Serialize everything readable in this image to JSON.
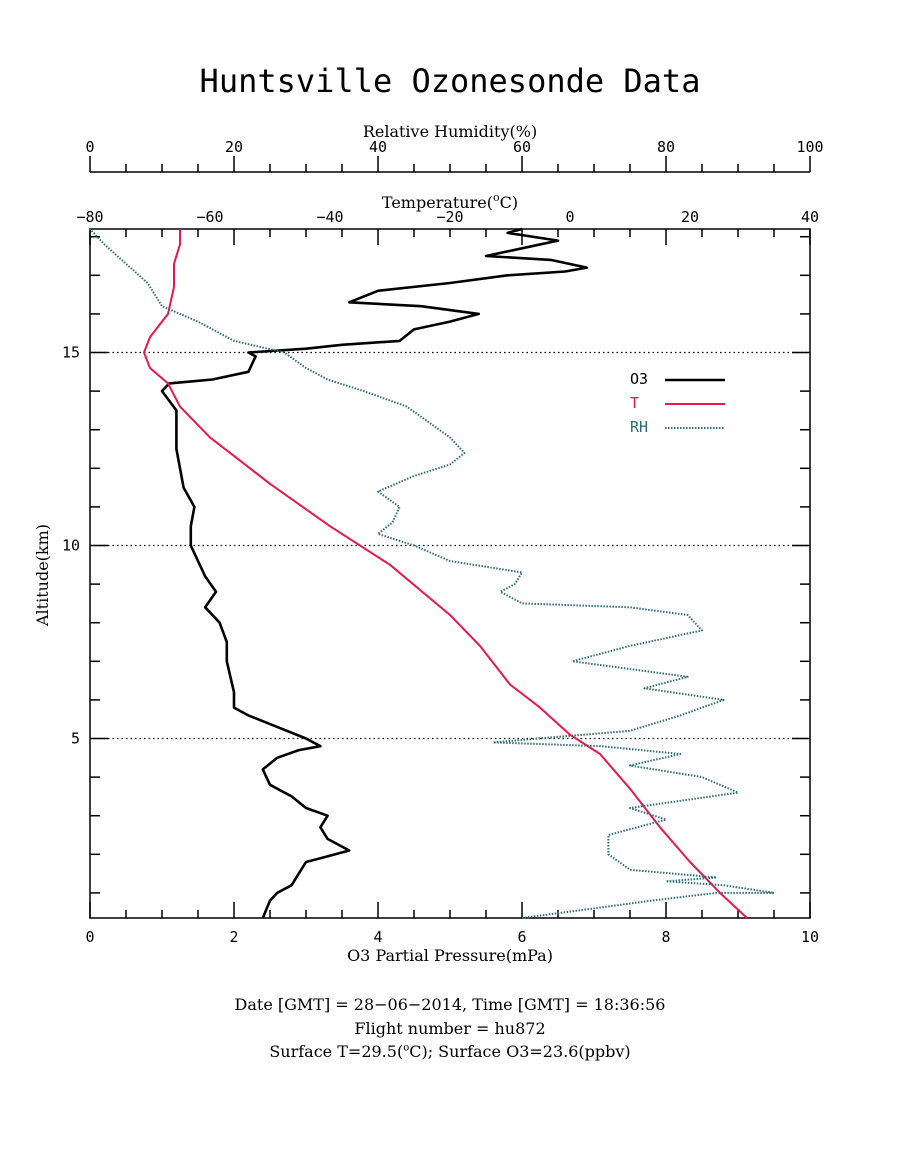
{
  "chart_data": {
    "type": "line",
    "title": "Huntsville Ozonesonde Data",
    "xlabel": "O3 Partial Pressure(mPa)",
    "ylabel": "Altitude(km)",
    "top_axis_rh_label": "Relative Humidity(%)",
    "top_axis_temp_label_prefix": "Temperature(",
    "top_axis_temp_label_sup": "o",
    "top_axis_temp_label_suffix": "C)",
    "axes": {
      "o3": {
        "range": [
          0,
          10
        ],
        "ticks": [
          "0",
          "2",
          "4",
          "6",
          "8",
          "10"
        ]
      },
      "temperature": {
        "range": [
          -80,
          40
        ],
        "ticks": [
          "−80",
          "−60",
          "−40",
          "−20",
          "0",
          "20",
          "40"
        ]
      },
      "relative_humidity": {
        "range": [
          0,
          100
        ],
        "ticks": [
          "0",
          "20",
          "40",
          "60",
          "80",
          "100"
        ]
      },
      "altitude": {
        "range": [
          0.35,
          18.2
        ],
        "ticks": [
          "5",
          "10",
          "15"
        ]
      }
    },
    "grid": {
      "dotted_altitudes": [
        5,
        10,
        15
      ]
    },
    "legend": {
      "placement": "right",
      "entries": [
        {
          "label": "O3",
          "color": "#000000"
        },
        {
          "label": "T",
          "color": "#e8194a"
        },
        {
          "label": "RH",
          "color": "#2d6e75"
        }
      ]
    },
    "series": [
      {
        "name": "O3",
        "axis": "o3",
        "color": "#000000",
        "points": [
          [
            2.4,
            0.35
          ],
          [
            2.5,
            0.8
          ],
          [
            2.6,
            1.0
          ],
          [
            2.8,
            1.2
          ],
          [
            2.9,
            1.5
          ],
          [
            3.0,
            1.8
          ],
          [
            3.2,
            1.9
          ],
          [
            3.6,
            2.1
          ],
          [
            3.3,
            2.4
          ],
          [
            3.2,
            2.7
          ],
          [
            3.3,
            3.0
          ],
          [
            3.0,
            3.2
          ],
          [
            2.8,
            3.5
          ],
          [
            2.5,
            3.8
          ],
          [
            2.4,
            4.2
          ],
          [
            2.6,
            4.5
          ],
          [
            2.9,
            4.7
          ],
          [
            3.2,
            4.8
          ],
          [
            3.0,
            5.0
          ],
          [
            2.6,
            5.3
          ],
          [
            2.2,
            5.6
          ],
          [
            2.0,
            5.8
          ],
          [
            2.0,
            6.2
          ],
          [
            1.95,
            6.6
          ],
          [
            1.9,
            7.0
          ],
          [
            1.9,
            7.5
          ],
          [
            1.8,
            8.0
          ],
          [
            1.6,
            8.4
          ],
          [
            1.75,
            8.8
          ],
          [
            1.6,
            9.2
          ],
          [
            1.5,
            9.6
          ],
          [
            1.4,
            10.0
          ],
          [
            1.4,
            10.5
          ],
          [
            1.45,
            11.0
          ],
          [
            1.3,
            11.5
          ],
          [
            1.25,
            12.0
          ],
          [
            1.2,
            12.5
          ],
          [
            1.2,
            13.0
          ],
          [
            1.2,
            13.5
          ],
          [
            1.0,
            14.0
          ],
          [
            1.1,
            14.2
          ],
          [
            1.7,
            14.3
          ],
          [
            2.2,
            14.5
          ],
          [
            2.3,
            14.9
          ],
          [
            2.2,
            15.0
          ],
          [
            3.0,
            15.1
          ],
          [
            3.5,
            15.2
          ],
          [
            4.3,
            15.3
          ],
          [
            4.5,
            15.6
          ],
          [
            5.0,
            15.8
          ],
          [
            5.4,
            16.0
          ],
          [
            4.6,
            16.2
          ],
          [
            3.6,
            16.3
          ],
          [
            4.0,
            16.6
          ],
          [
            5.0,
            16.8
          ],
          [
            5.8,
            17.0
          ],
          [
            6.6,
            17.1
          ],
          [
            6.9,
            17.2
          ],
          [
            6.4,
            17.4
          ],
          [
            5.5,
            17.5
          ],
          [
            6.0,
            17.7
          ],
          [
            6.5,
            17.9
          ],
          [
            5.8,
            18.1
          ],
          [
            6.0,
            18.2
          ]
        ]
      },
      {
        "name": "T",
        "axis": "temperature",
        "color": "#e8194a",
        "points": [
          [
            29.5,
            0.35
          ],
          [
            25,
            1.0
          ],
          [
            20,
            1.8
          ],
          [
            15,
            2.7
          ],
          [
            10,
            3.7
          ],
          [
            5,
            4.6
          ],
          [
            0,
            5.1
          ],
          [
            -5,
            5.8
          ],
          [
            -10,
            6.4
          ],
          [
            -15,
            7.4
          ],
          [
            -20,
            8.2
          ],
          [
            -30,
            9.5
          ],
          [
            -40,
            10.5
          ],
          [
            -50,
            11.6
          ],
          [
            -60,
            12.8
          ],
          [
            -65,
            13.6
          ],
          [
            -67,
            14.2
          ],
          [
            -70,
            14.6
          ],
          [
            -71,
            15.0
          ],
          [
            -70,
            15.4
          ],
          [
            -67,
            16.0
          ],
          [
            -66,
            16.7
          ],
          [
            -66,
            17.3
          ],
          [
            -65,
            17.8
          ],
          [
            -65,
            18.2
          ]
        ]
      },
      {
        "name": "RH",
        "axis": "relative_humidity",
        "color": "#2d6e75",
        "points": [
          [
            60,
            0.35
          ],
          [
            70,
            0.6
          ],
          [
            78,
            0.8
          ],
          [
            87,
            1.0
          ],
          [
            95,
            1.0
          ],
          [
            88,
            1.2
          ],
          [
            80,
            1.3
          ],
          [
            87,
            1.4
          ],
          [
            75,
            1.6
          ],
          [
            72,
            2.0
          ],
          [
            72,
            2.5
          ],
          [
            80,
            2.9
          ],
          [
            75,
            3.2
          ],
          [
            90,
            3.6
          ],
          [
            85,
            4.0
          ],
          [
            75,
            4.3
          ],
          [
            82,
            4.6
          ],
          [
            71,
            4.8
          ],
          [
            56,
            4.9
          ],
          [
            75,
            5.2
          ],
          [
            82,
            5.6
          ],
          [
            88,
            6.0
          ],
          [
            77,
            6.3
          ],
          [
            83,
            6.6
          ],
          [
            67,
            7.0
          ],
          [
            75,
            7.4
          ],
          [
            85,
            7.8
          ],
          [
            83,
            8.2
          ],
          [
            75,
            8.4
          ],
          [
            60,
            8.5
          ],
          [
            57,
            8.8
          ],
          [
            59,
            9.0
          ],
          [
            60,
            9.3
          ],
          [
            50,
            9.6
          ],
          [
            45,
            10.0
          ],
          [
            40,
            10.3
          ],
          [
            42,
            10.6
          ],
          [
            43,
            11.0
          ],
          [
            40,
            11.4
          ],
          [
            45,
            11.8
          ],
          [
            50,
            12.1
          ],
          [
            52,
            12.4
          ],
          [
            50,
            12.8
          ],
          [
            47,
            13.2
          ],
          [
            44,
            13.6
          ],
          [
            38,
            14.0
          ],
          [
            33,
            14.3
          ],
          [
            30,
            14.6
          ],
          [
            27,
            15.0
          ],
          [
            20,
            15.3
          ],
          [
            15,
            15.8
          ],
          [
            10,
            16.2
          ],
          [
            8,
            16.8
          ],
          [
            5,
            17.3
          ],
          [
            2,
            17.8
          ],
          [
            0,
            18.2
          ]
        ]
      }
    ]
  },
  "footer": {
    "line1": "Date [GMT] = 28−06−2014,  Time [GMT] = 18:36:56",
    "line2": "Flight number = hu872",
    "line3_prefix": "Surface T=29.5(",
    "line3_sup": "o",
    "line3_suffix": "C); Surface O3=23.6(ppbv)"
  }
}
